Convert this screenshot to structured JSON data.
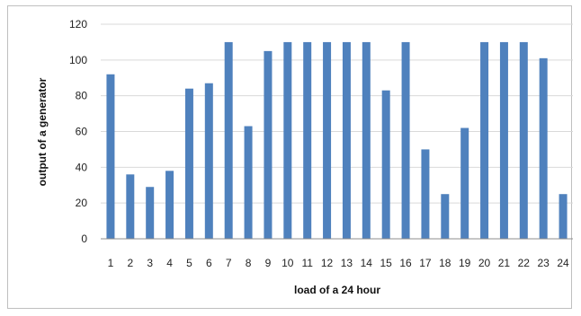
{
  "chart_data": {
    "type": "bar",
    "xlabel": "load of a 24 hour",
    "ylabel": "output of a generator",
    "ylim": [
      0,
      120
    ],
    "yticks": [
      0,
      20,
      40,
      60,
      80,
      100,
      120
    ],
    "grid": true,
    "legend": "none",
    "bar_color": "#4f81bd",
    "grid_color": "#d9d9d9",
    "categories": [
      "1",
      "2",
      "3",
      "4",
      "5",
      "6",
      "7",
      "8",
      "9",
      "10",
      "11",
      "12",
      "13",
      "14",
      "15",
      "16",
      "17",
      "18",
      "19",
      "20",
      "21",
      "22",
      "23",
      "24"
    ],
    "values": [
      92,
      36,
      29,
      38,
      84,
      87,
      110,
      63,
      105,
      110,
      110,
      110,
      110,
      110,
      83,
      110,
      50,
      25,
      62,
      110,
      110,
      110,
      101,
      25
    ]
  }
}
